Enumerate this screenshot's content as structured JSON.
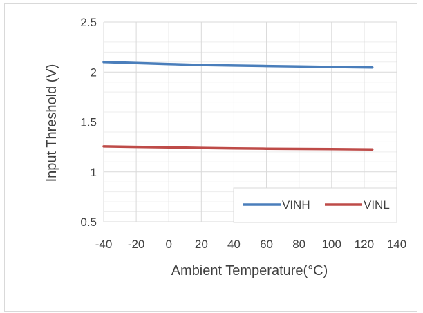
{
  "chart_data": {
    "type": "line",
    "title": "",
    "xlabel": "Ambient Temperature(°C)",
    "ylabel": "Input Threshold (V)",
    "xlim": [
      -40,
      140
    ],
    "ylim": [
      0.5,
      2.5
    ],
    "x_major_ticks": [
      -40,
      -20,
      0,
      20,
      40,
      60,
      80,
      100,
      120,
      140
    ],
    "y_major_ticks": [
      0.5,
      1,
      1.5,
      2,
      2.5
    ],
    "x_tick_labels": [
      "-40",
      "-20",
      "0",
      "20",
      "40",
      "60",
      "80",
      "100",
      "120",
      "140"
    ],
    "y_tick_labels": [
      "0.5",
      "1",
      "1.5",
      "2",
      "2.5"
    ],
    "grid": true,
    "legend_position": "bottom-right inside plot",
    "series": [
      {
        "name": "VINH",
        "color": "#4a7ebb",
        "x": [
          -40,
          -20,
          0,
          20,
          40,
          60,
          80,
          100,
          125
        ],
        "y": [
          2.1,
          2.09,
          2.08,
          2.07,
          2.065,
          2.06,
          2.055,
          2.05,
          2.045
        ]
      },
      {
        "name": "VINL",
        "color": "#be4b48",
        "x": [
          -40,
          -20,
          0,
          20,
          40,
          60,
          80,
          100,
          125
        ],
        "y": [
          1.255,
          1.25,
          1.245,
          1.24,
          1.235,
          1.232,
          1.23,
          1.228,
          1.225
        ]
      }
    ]
  }
}
